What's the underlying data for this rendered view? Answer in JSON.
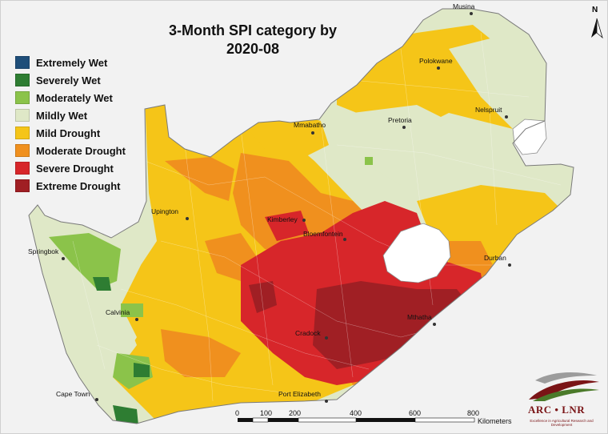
{
  "title_line1": "3-Month SPI category by",
  "title_line2": "2020-08",
  "legend": [
    {
      "label": "Extremely Wet",
      "color": "#1f4e79"
    },
    {
      "label": "Severely Wet",
      "color": "#2e7d32"
    },
    {
      "label": "Moderately Wet",
      "color": "#8bc34a"
    },
    {
      "label": "Mildly Wet",
      "color": "#dfe8c7"
    },
    {
      "label": "Mild Drought",
      "color": "#f5c518"
    },
    {
      "label": "Moderate Drought",
      "color": "#f0901e"
    },
    {
      "label": "Severe Drought",
      "color": "#d7262a"
    },
    {
      "label": "Extreme Drought",
      "color": "#a01f24"
    }
  ],
  "cities": {
    "musina": "Musina",
    "polokwane": "Polokwane",
    "mmabatho": "Mmabatho",
    "pretoria": "Pretoria",
    "nelspruit": "Nelspruit",
    "upington": "Upington",
    "kimberley": "Kimberley",
    "bloemfontein": "Bloemfontein",
    "springbok": "Springbok",
    "durban": "Durban",
    "calvinia": "Calvinia",
    "mthatha": "Mthatha",
    "cradock": "Cradock",
    "cape_town": "Cape Town",
    "port_elizabeth": "Port Elizabeth"
  },
  "north_arrow": "N",
  "scale": {
    "ticks": [
      "0",
      "100",
      "200",
      "400",
      "600",
      "800"
    ],
    "unit": "Kilometers"
  },
  "logo": {
    "text": "ARC • LNR",
    "tagline": "Excellence in Agricultural Research and Development"
  }
}
